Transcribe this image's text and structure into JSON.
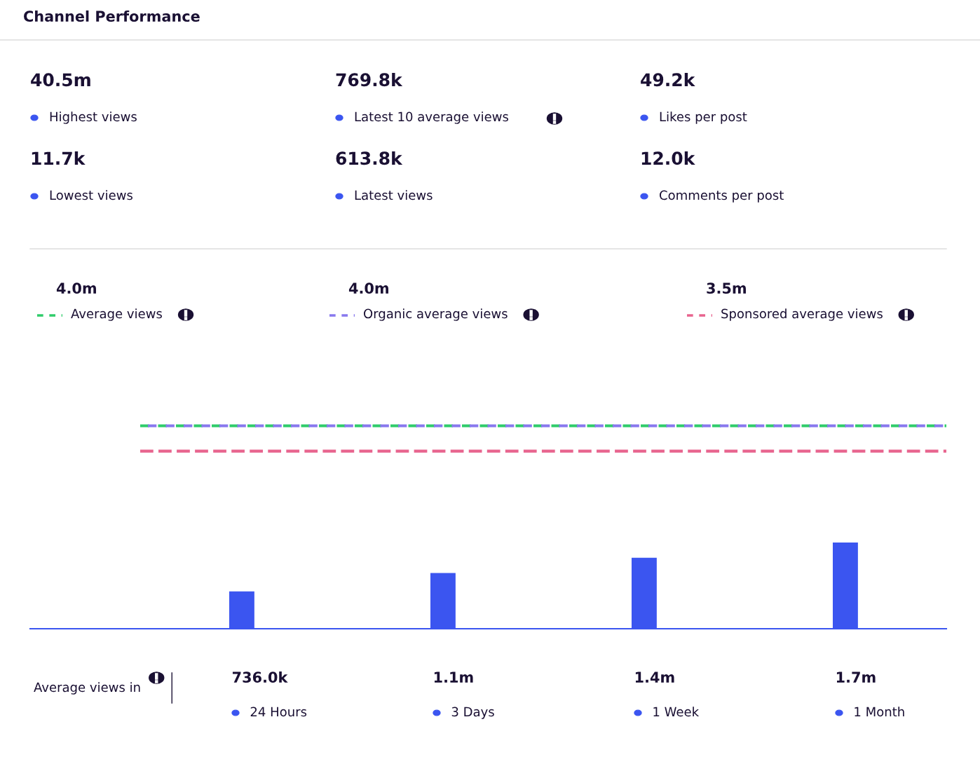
{
  "chart_data": [
    {
      "type": "other",
      "title": "Channel Performance",
      "annotations": [
        "40.5m",
        "Highest views",
        "769.8k",
        "Latest 10 average views",
        "49.2k",
        "Likes per post",
        "11.7k",
        "Lowest views",
        "613.8k",
        "Latest views",
        "12.0k",
        "Comments per post"
      ]
    },
    {
      "type": "bar",
      "categories": [
        "24 Hours",
        "3 Days",
        "1 Week",
        "1 Month"
      ],
      "values": [
        736000,
        1100000,
        1400000,
        1700000
      ],
      "value_labels": [
        "736.0k",
        "1.1m",
        "1.4m",
        "1.7m"
      ],
      "color": "#3b55f0",
      "xlabel": "Average views in",
      "tick_labels": false,
      "legend": "top",
      "ref_lines": [
        {
          "axis": "y",
          "value": 4000000,
          "label": "Average views",
          "color": "#2fcc6a",
          "line_style": "dashed"
        },
        {
          "axis": "y",
          "value": 4000000,
          "label": "Organic average views",
          "color": "#8878ee",
          "line_style": "dashed"
        },
        {
          "axis": "y",
          "value": 3500000,
          "label": "Sponsored average views",
          "color": "#e8648e",
          "line_style": "dashed"
        }
      ],
      "annotations": [
        "4.0m",
        "4.0m",
        "3.5m"
      ]
    }
  ]
}
